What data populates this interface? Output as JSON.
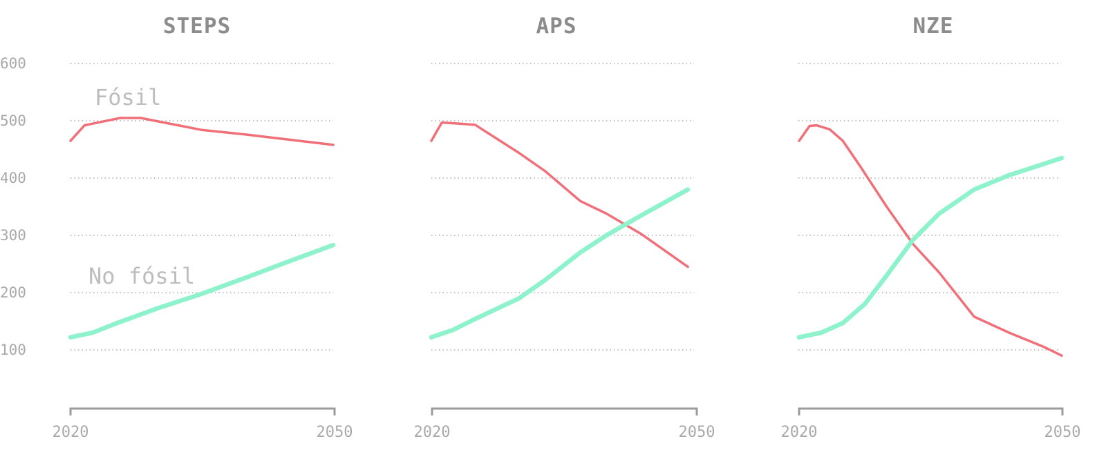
{
  "chart_data": [
    {
      "type": "line",
      "title": "STEPS",
      "x_tick_labels": [
        "2020",
        "2050"
      ],
      "y_tick_labels": [
        "100",
        "200",
        "300",
        "400",
        "500",
        "600"
      ],
      "ylim": [
        0,
        600
      ],
      "xlim": [
        2020,
        2050
      ],
      "grid": true,
      "series": [
        {
          "name": "Fósil",
          "color": "#f0707a",
          "x": [
            2020,
            2021.6,
            2025.7,
            2028,
            2035,
            2040,
            2045,
            2050
          ],
          "y": [
            465,
            492,
            505,
            505,
            484,
            476,
            467,
            458
          ]
        },
        {
          "name": "No fósil",
          "color": "#8ef3cc",
          "x": [
            2020,
            2022.5,
            2025,
            2030,
            2035,
            2040,
            2045,
            2050
          ],
          "y": [
            122,
            130,
            145,
            173,
            198,
            226,
            255,
            283
          ]
        }
      ]
    },
    {
      "type": "line",
      "title": "APS",
      "x_tick_labels": [
        "2020",
        "2050"
      ],
      "y_tick_labels": [],
      "ylim": [
        0,
        600
      ],
      "xlim": [
        2020,
        2050
      ],
      "grid": true,
      "series": [
        {
          "name": "",
          "color": "#f0707a",
          "x": [
            2020,
            2021.2,
            2025,
            2030,
            2033,
            2037,
            2040,
            2044,
            2049.3
          ],
          "y": [
            465,
            497,
            493,
            444,
            412,
            360,
            338,
            302,
            245
          ]
        },
        {
          "name": "",
          "color": "#8ef3cc",
          "x": [
            2020,
            2022.5,
            2025,
            2030,
            2033,
            2037,
            2040,
            2044,
            2049.3
          ],
          "y": [
            122,
            135,
            154,
            190,
            222,
            270,
            300,
            335,
            380
          ]
        }
      ]
    },
    {
      "type": "line",
      "title": "NZE",
      "x_tick_labels": [
        "2020",
        "2050"
      ],
      "y_tick_labels": [],
      "ylim": [
        0,
        600
      ],
      "xlim": [
        2020,
        2050
      ],
      "grid": true,
      "series": [
        {
          "name": "",
          "color": "#f0707a",
          "x": [
            2020,
            2021.2,
            2022,
            2023.5,
            2025,
            2027,
            2030,
            2033,
            2036,
            2040,
            2044,
            2048,
            2050
          ],
          "y": [
            465,
            491,
            492,
            485,
            465,
            420,
            350,
            285,
            235,
            158,
            130,
            105,
            90
          ]
        },
        {
          "name": "",
          "color": "#8ef3cc",
          "x": [
            2020,
            2022.5,
            2025,
            2027.5,
            2030,
            2033,
            2036,
            2040,
            2044,
            2048,
            2050
          ],
          "y": [
            122,
            130,
            147,
            180,
            230,
            292,
            338,
            380,
            405,
            425,
            435
          ]
        }
      ]
    }
  ]
}
